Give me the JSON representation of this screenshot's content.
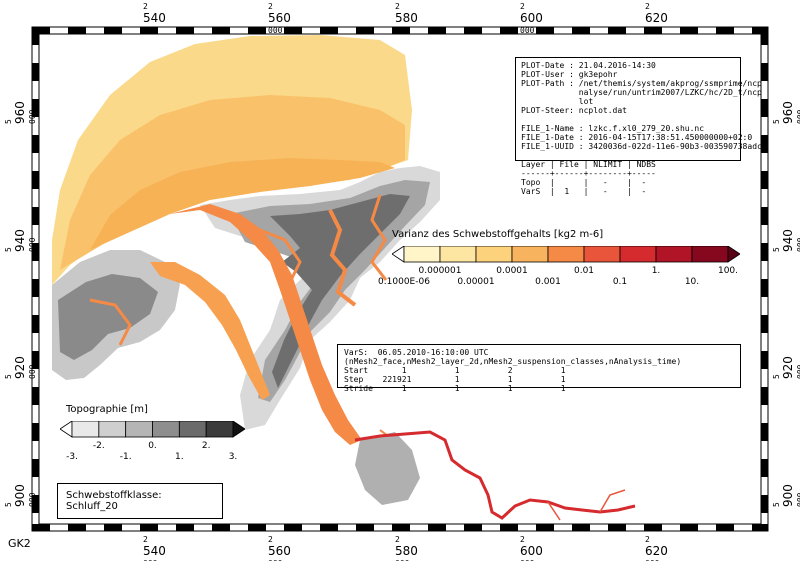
{
  "map": {
    "grid_label": "GK2",
    "x_ticks": [
      {
        "prefix": "2",
        "value": "540",
        "suffix": "000"
      },
      {
        "prefix": "2",
        "value": "560",
        "suffix": "000"
      },
      {
        "prefix": "2",
        "value": "580",
        "suffix": "000"
      },
      {
        "prefix": "2",
        "value": "600",
        "suffix": "000"
      },
      {
        "prefix": "2",
        "value": "620",
        "suffix": "000"
      }
    ],
    "y_ticks": [
      {
        "prefix": "5",
        "value": "960",
        "suffix": "000"
      },
      {
        "prefix": "5",
        "value": "940",
        "suffix": "000"
      },
      {
        "prefix": "5",
        "value": "920",
        "suffix": "000"
      },
      {
        "prefix": "5",
        "value": "900",
        "suffix": "000"
      }
    ]
  },
  "info_panel": {
    "lines": [
      "PLOT-Date : 21.04.2016-14:30",
      "PLOT-User : gk3epohr",
      "PLOT-Path : /net/themis/system/akprog/ssmprime/ncp",
      "            nalyse/run/untrim2007/LZKC/hc/2D_t/ncp",
      "            lot",
      "PLOT-Steer: ncplot.dat",
      "",
      "FILE_1-Name : lzkc.f.xl0_279_20.shu.nc",
      "FILE_1-Date : 2016-04-15T17:38:51.450000000+02:0",
      "FILE_1-UUID : 3420036d-022d-11e6-90b3-003590738adc",
      "",
      "Layer | File | NLIMIT | NDBS",
      "------+------+--------+-----",
      "Topo  |      |   -    |  -",
      "VarS  |  1   |   -    |  -"
    ]
  },
  "time_panel": {
    "lines": [
      "VarS:  06.05.2010-16:10:00 UTC",
      "(nMesh2_face,nMesh2_layer_2d,nMesh2_suspension_classes,nAnalysis_time)",
      "Start       1          1          2          1",
      "Step    221921         1          1          1",
      "Stride      1          1          1          1"
    ]
  },
  "variance_legend": {
    "title": "Varianz des Schwebstoffgehalts [kg2 m-6]",
    "colors": [
      "#ffffff",
      "#fff5c8",
      "#fde6a2",
      "#fcd27c",
      "#f8b35e",
      "#f48a46",
      "#e9553a",
      "#d52a2e",
      "#b01426",
      "#85081e",
      "#5a0216"
    ],
    "upper_labels": [
      "0.000001",
      "0.0001",
      "0.01",
      "1.",
      "100."
    ],
    "lower_labels": [
      "0.1000E-06",
      "0.00001",
      "0.001",
      "0.1",
      "10."
    ]
  },
  "topo_legend": {
    "title": "Topographie [m]",
    "colors": [
      "#ffffff",
      "#e9e9e9",
      "#cfcfcf",
      "#b5b5b5",
      "#8e8e8e",
      "#6b6b6b",
      "#3c3c3c",
      "#111111"
    ],
    "upper_labels": [
      "-2.",
      "0.",
      "2."
    ],
    "lower_labels": [
      "-3.",
      "-1.",
      "1.",
      "3."
    ]
  },
  "class_label": "Schwebstoffklasse: Schluff_20",
  "palette": {
    "sea_light": "#fcd27c",
    "sea_mid": "#f8b35e",
    "channel": "#f48a46",
    "river": "#d52a2e",
    "land_light": "#d9d9d9",
    "land_mid": "#a5a5a5",
    "land_dark": "#6e6e6e"
  }
}
